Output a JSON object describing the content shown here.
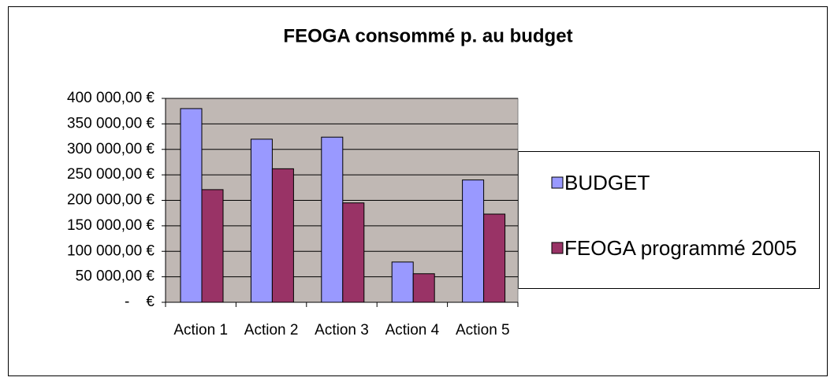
{
  "chart_data": {
    "type": "bar",
    "title": "FEOGA consommé p. au budget",
    "categories": [
      "Action 1",
      "Action 2",
      "Action 3",
      "Action 4",
      "Action 5"
    ],
    "series": [
      {
        "name": "BUDGET",
        "color": "#9999ff",
        "values": [
          380000,
          320000,
          324000,
          79000,
          240000
        ]
      },
      {
        "name": "FEOGA programmé 2005",
        "color": "#993366",
        "values": [
          221000,
          262000,
          195000,
          56000,
          173000
        ]
      }
    ],
    "ylim": [
      0,
      400000
    ],
    "yticks": [
      {
        "value": 0,
        "label": "-    €"
      },
      {
        "value": 50000,
        "label": "50 000,00 €"
      },
      {
        "value": 100000,
        "label": "100 000,00 €"
      },
      {
        "value": 150000,
        "label": "150 000,00 €"
      },
      {
        "value": 200000,
        "label": "200 000,00 €"
      },
      {
        "value": 250000,
        "label": "250 000,00 €"
      },
      {
        "value": 300000,
        "label": "300 000,00 €"
      },
      {
        "value": 350000,
        "label": "350 000,00 €"
      },
      {
        "value": 400000,
        "label": "400 000,00 €"
      }
    ],
    "grid": true,
    "legend": "right",
    "plot_background": "#c0b8b4"
  }
}
